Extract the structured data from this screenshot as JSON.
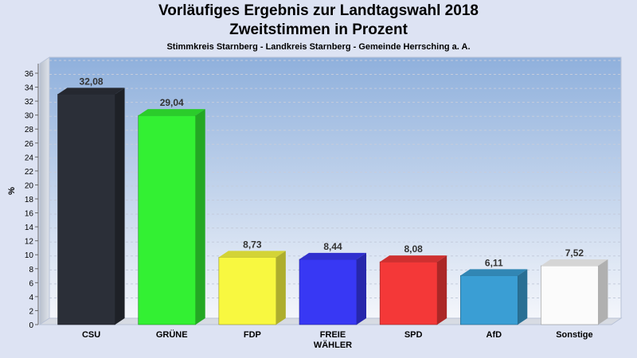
{
  "header": {
    "title_line1": "Vorläufiges Ergebnis zur Landtagswahl 2018",
    "title_line2": "Zweitstimmen in Prozent",
    "subtitle": "Stimmkreis Starnberg - Landkreis Starnberg - Gemeinde Herrsching a. A."
  },
  "chart_data": {
    "type": "bar",
    "title": "Vorläufiges Ergebnis zur Landtagswahl 2018 Zweitstimmen in Prozent",
    "subtitle": "Stimmkreis Starnberg - Landkreis Starnberg - Gemeinde Herrsching a. A.",
    "ylabel": "%",
    "xlabel": "",
    "ylim": [
      0,
      36
    ],
    "ytick_step": 2,
    "grid": true,
    "categories": [
      [
        "CSU"
      ],
      [
        "GRÜNE"
      ],
      [
        "FDP"
      ],
      [
        "FREIE",
        "WÄHLER"
      ],
      [
        "SPD"
      ],
      [
        "AfD"
      ],
      [
        "Sonstige"
      ]
    ],
    "values": [
      32.08,
      29.04,
      8.73,
      8.44,
      8.08,
      6.11,
      7.52
    ],
    "value_labels": [
      "32,08",
      "29,04",
      "8,73",
      "8,44",
      "8,08",
      "6,11",
      "7,52"
    ],
    "colors": [
      "#2b2f38",
      "#33f033",
      "#f8f840",
      "#3838f4",
      "#f43838",
      "#3a9ed4",
      "#fbfbfb"
    ]
  }
}
